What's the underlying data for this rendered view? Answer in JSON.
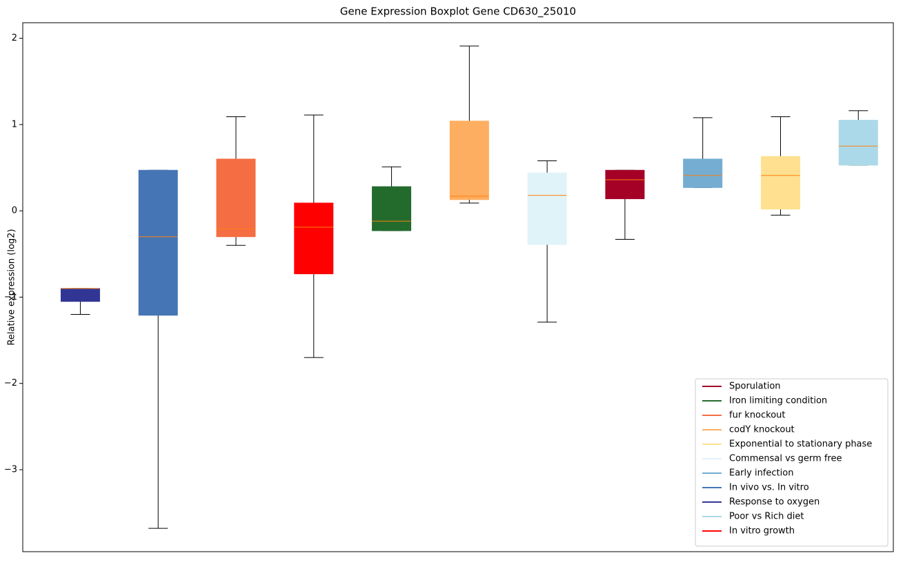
{
  "chart_data": {
    "type": "boxplot",
    "title": "Gene Expression Boxplot Gene CD630_25010",
    "ylabel": "Relative expression (log2)",
    "xlim": [
      0.26,
      11.45
    ],
    "ylim": [
      -3.95,
      2.18
    ],
    "yticks": [
      {
        "value": -3,
        "label": "−3"
      },
      {
        "value": -2,
        "label": "−2"
      },
      {
        "value": -1,
        "label": "−1"
      },
      0,
      1,
      2
    ],
    "median_color": "#ff7f0e",
    "legend": "lower right",
    "series": [
      {
        "name": "Sporulation",
        "color": "#a50026",
        "x": 8,
        "whislo": -0.33,
        "q1": 0.14,
        "med": 0.36,
        "q3": 0.47,
        "whishi": 0.47
      },
      {
        "name": "Iron limiting condition",
        "color": "#236b2d",
        "x": 5,
        "whislo": -0.23,
        "q1": -0.23,
        "med": -0.12,
        "q3": 0.28,
        "whishi": 0.51
      },
      {
        "name": "fur knockout",
        "color": "#f46d43",
        "x": 3,
        "whislo": -0.4,
        "q1": -0.3,
        "med": -0.21,
        "q3": 0.6,
        "whishi": 1.09
      },
      {
        "name": "codY knockout",
        "color": "#fdae61",
        "x": 6,
        "whislo": 0.09,
        "q1": 0.13,
        "med": 0.17,
        "q3": 1.04,
        "whishi": 1.91
      },
      {
        "name": "Exponential to stationary phase",
        "color": "#fee090",
        "x": 10,
        "whislo": -0.05,
        "q1": 0.02,
        "med": 0.41,
        "q3": 0.63,
        "whishi": 1.09
      },
      {
        "name": "Commensal vs germ free",
        "color": "#e0f3f8",
        "x": 7,
        "whislo": -1.29,
        "q1": -0.39,
        "med": 0.18,
        "q3": 0.44,
        "whishi": 0.58
      },
      {
        "name": "Early infection",
        "color": "#74add1",
        "x": 9,
        "whislo": 0.27,
        "q1": 0.27,
        "med": 0.41,
        "q3": 0.6,
        "whishi": 1.08
      },
      {
        "name": "In vivo vs. In vitro",
        "color": "#4575b4",
        "x": 2,
        "whislo": -3.68,
        "q1": -1.21,
        "med": -0.3,
        "q3": 0.47,
        "whishi": 0.47
      },
      {
        "name": "Response to oxygen",
        "color": "#313695",
        "x": 1,
        "whislo": -1.2,
        "q1": -1.05,
        "med": -0.9,
        "q3": -0.9,
        "whishi": -0.9
      },
      {
        "name": "Poor vs Rich diet",
        "color": "#abd9e9",
        "x": 11,
        "whislo": 0.53,
        "q1": 0.53,
        "med": 0.75,
        "q3": 1.05,
        "whishi": 1.16
      },
      {
        "name": "In vitro growth",
        "color": "#ff0000",
        "x": 4,
        "whislo": -1.7,
        "q1": -0.73,
        "med": -0.19,
        "q3": 0.09,
        "whishi": 1.11
      }
    ]
  }
}
